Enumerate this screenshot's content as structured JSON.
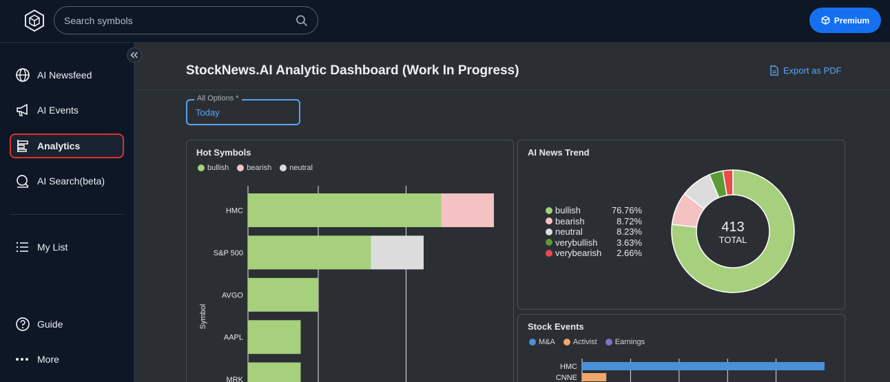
{
  "header": {
    "search_placeholder": "Search symbols",
    "premium_label": "Premium"
  },
  "sidebar": {
    "items": [
      {
        "label": "AI Newsfeed",
        "icon": "globe-icon"
      },
      {
        "label": "AI Events",
        "icon": "megaphone-icon"
      },
      {
        "label": "Analytics",
        "icon": "analytics-icon",
        "active": true
      },
      {
        "label": "AI Search(beta)",
        "icon": "search-ai-icon"
      },
      {
        "label": "My List",
        "icon": "list-icon"
      },
      {
        "label": "Guide",
        "icon": "help-icon"
      },
      {
        "label": "More",
        "icon": "more-icon"
      }
    ]
  },
  "main": {
    "title": "StockNews.AI Analytic Dashboard (Work In Progress)",
    "export_label": "Export as PDF",
    "filter": {
      "label": "All Options *",
      "value": "Today"
    }
  },
  "colors": {
    "bullish": "#a6d07c",
    "bearish": "#f4c2c2",
    "neutral": "#dcdcdc",
    "verybullish": "#5a9b35",
    "verybearish": "#e94a4a",
    "ma": "#4a90d9",
    "activist": "#f0a76a",
    "earnings": "#7b73c4",
    "accent": "#1570ef"
  },
  "hot_symbols": {
    "title": "Hot Symbols",
    "legend": [
      "bullish",
      "bearish",
      "neutral"
    ],
    "ylabel": "Symbol"
  },
  "news_trend": {
    "title": "AI News Trend",
    "total": "413",
    "total_label": "TOTAL",
    "rows": [
      {
        "name": "bullish",
        "value": "76.76%"
      },
      {
        "name": "bearish",
        "value": "8.72%"
      },
      {
        "name": "neutral",
        "value": "8.23%"
      },
      {
        "name": "verybullish",
        "value": "3.63%"
      },
      {
        "name": "verybearish",
        "value": "2.66%"
      }
    ]
  },
  "stock_events": {
    "title": "Stock Events",
    "legend": [
      "M&A",
      "Activist",
      "Earnings"
    ]
  },
  "chart_data": [
    {
      "type": "bar",
      "orientation": "horizontal",
      "stacked": true,
      "title": "Hot Symbols",
      "ylabel": "Symbol",
      "categories": [
        "HMC",
        "S&P 500",
        "AVGO",
        "AAPL",
        "MRK"
      ],
      "series": [
        {
          "name": "bullish",
          "values": [
            11,
            7,
            4,
            3,
            3
          ]
        },
        {
          "name": "bearish",
          "values": [
            3,
            0,
            0,
            0,
            0
          ]
        },
        {
          "name": "neutral",
          "values": [
            0,
            3,
            0,
            0,
            0
          ]
        }
      ],
      "xlim": [
        0,
        14
      ],
      "grid": true
    },
    {
      "type": "pie",
      "donut": true,
      "title": "AI News Trend",
      "labels": [
        "bullish",
        "bearish",
        "neutral",
        "verybullish",
        "verybearish"
      ],
      "values": [
        76.76,
        8.72,
        8.23,
        3.63,
        2.66
      ],
      "total": 413
    },
    {
      "type": "bar",
      "orientation": "horizontal",
      "stacked": true,
      "title": "Stock Events",
      "categories": [
        "HMC",
        "CNNE"
      ],
      "series": [
        {
          "name": "M&A",
          "values": [
            5,
            0
          ]
        },
        {
          "name": "Activist",
          "values": [
            0,
            0.5
          ]
        },
        {
          "name": "Earnings",
          "values": [
            0,
            0
          ]
        }
      ],
      "xlim": [
        0,
        5
      ],
      "grid": true
    }
  ]
}
